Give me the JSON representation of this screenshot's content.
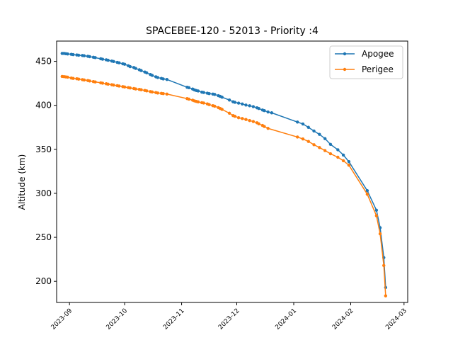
{
  "chart_data": {
    "type": "line",
    "title": "SPACEBEE-120 - 52013 - Priority :4",
    "xlabel": "",
    "ylabel": "Altitude (km)",
    "xlim": [
      "2023-08-25",
      "2024-03-03"
    ],
    "ylim": [
      176,
      473
    ],
    "x_ticks": [
      "2023-09",
      "2023-10",
      "2023-11",
      "2023-12",
      "2024-01",
      "2024-02",
      "2024-03"
    ],
    "y_ticks": [
      200,
      250,
      300,
      350,
      400,
      450
    ],
    "grid": false,
    "legend_position": "top-right",
    "series": [
      {
        "name": "Apogee",
        "color": "#1f77b4",
        "points": [
          [
            "2023-08-28",
            459
          ],
          [
            "2023-08-29",
            459
          ],
          [
            "2023-08-30",
            458.7
          ],
          [
            "2023-08-31",
            458.4
          ],
          [
            "2023-09-02",
            458
          ],
          [
            "2023-09-03",
            457.6
          ],
          [
            "2023-09-05",
            457.2
          ],
          [
            "2023-09-06",
            456.9
          ],
          [
            "2023-09-08",
            456.6
          ],
          [
            "2023-09-09",
            456.3
          ],
          [
            "2023-09-11",
            455.7
          ],
          [
            "2023-09-12",
            455.3
          ],
          [
            "2023-09-14",
            454.6
          ],
          [
            "2023-09-15",
            454.2
          ],
          [
            "2023-09-18",
            452.9
          ],
          [
            "2023-09-19",
            452.4
          ],
          [
            "2023-09-21",
            451.7
          ],
          [
            "2023-09-22",
            451.2
          ],
          [
            "2023-09-24",
            450.3
          ],
          [
            "2023-09-25",
            449.8
          ],
          [
            "2023-09-27",
            448.8
          ],
          [
            "2023-09-28",
            448.3
          ],
          [
            "2023-09-30",
            447.2
          ],
          [
            "2023-10-01",
            446.7
          ],
          [
            "2023-10-03",
            445
          ],
          [
            "2023-10-04",
            444
          ],
          [
            "2023-10-06",
            443
          ],
          [
            "2023-10-07",
            442
          ],
          [
            "2023-10-09",
            440.4
          ],
          [
            "2023-10-10",
            439.5
          ],
          [
            "2023-10-12",
            437.8
          ],
          [
            "2023-10-13",
            436.9
          ],
          [
            "2023-10-15",
            435
          ],
          [
            "2023-10-16",
            434
          ],
          [
            "2023-10-18",
            432.4
          ],
          [
            "2023-10-19",
            431.6
          ],
          [
            "2023-10-21",
            430.6
          ],
          [
            "2023-10-22",
            430
          ],
          [
            "2023-10-24",
            429.4
          ],
          [
            "2023-11-04",
            420.5
          ],
          [
            "2023-11-05",
            420
          ],
          [
            "2023-11-07",
            418.5
          ],
          [
            "2023-11-08",
            417.5
          ],
          [
            "2023-11-09",
            416.8
          ],
          [
            "2023-11-10",
            416.3
          ],
          [
            "2023-11-12",
            415
          ],
          [
            "2023-11-13",
            414.6
          ],
          [
            "2023-11-15",
            413.8
          ],
          [
            "2023-11-16",
            413.3
          ],
          [
            "2023-11-18",
            412.8
          ],
          [
            "2023-11-19",
            412.4
          ],
          [
            "2023-11-21",
            411
          ],
          [
            "2023-11-22",
            410.2
          ],
          [
            "2023-11-23",
            409.3
          ],
          [
            "2023-11-27",
            406
          ],
          [
            "2023-11-29",
            404
          ],
          [
            "2023-11-30",
            403.4
          ],
          [
            "2023-12-02",
            402.5
          ],
          [
            "2023-12-04",
            401.5
          ],
          [
            "2023-12-06",
            400.3
          ],
          [
            "2023-12-08",
            399.5
          ],
          [
            "2023-12-10",
            398.5
          ],
          [
            "2023-12-12",
            397.2
          ],
          [
            "2023-12-13",
            396.4
          ],
          [
            "2023-12-15",
            394.7
          ],
          [
            "2023-12-16",
            394
          ],
          [
            "2023-12-18",
            392.5
          ],
          [
            "2023-12-20",
            391.5
          ],
          [
            "2024-01-03",
            381
          ],
          [
            "2024-01-06",
            378.8
          ],
          [
            "2024-01-09",
            375
          ],
          [
            "2024-01-12",
            370.8
          ],
          [
            "2024-01-15",
            367
          ],
          [
            "2024-01-18",
            362.2
          ],
          [
            "2024-01-21",
            355.6
          ],
          [
            "2024-01-25",
            349.5
          ],
          [
            "2024-01-28",
            343.5
          ],
          [
            "2024-01-31",
            336
          ],
          [
            "2024-02-10",
            303
          ],
          [
            "2024-02-15",
            280.8
          ],
          [
            "2024-02-17",
            261
          ],
          [
            "2024-02-19",
            227
          ],
          [
            "2024-02-20",
            193
          ]
        ]
      },
      {
        "name": "Perigee",
        "color": "#ff7f0e",
        "points": [
          [
            "2023-08-28",
            432.8
          ],
          [
            "2023-08-29",
            432.6
          ],
          [
            "2023-08-30",
            432.3
          ],
          [
            "2023-08-31",
            432
          ],
          [
            "2023-09-02",
            431
          ],
          [
            "2023-09-03",
            430.6
          ],
          [
            "2023-09-05",
            430.2
          ],
          [
            "2023-09-06",
            429.8
          ],
          [
            "2023-09-08",
            429.2
          ],
          [
            "2023-09-09",
            428.8
          ],
          [
            "2023-09-11",
            428.2
          ],
          [
            "2023-09-12",
            427.7
          ],
          [
            "2023-09-14",
            427
          ],
          [
            "2023-09-15",
            426.6
          ],
          [
            "2023-09-18",
            425.6
          ],
          [
            "2023-09-19",
            425.2
          ],
          [
            "2023-09-21",
            424.5
          ],
          [
            "2023-09-22",
            424
          ],
          [
            "2023-09-24",
            423.4
          ],
          [
            "2023-09-25",
            423
          ],
          [
            "2023-09-27",
            422.3
          ],
          [
            "2023-09-28",
            421.9
          ],
          [
            "2023-09-30",
            421.2
          ],
          [
            "2023-10-01",
            420.8
          ],
          [
            "2023-10-03",
            420.1
          ],
          [
            "2023-10-04",
            419.7
          ],
          [
            "2023-10-06",
            419.1
          ],
          [
            "2023-10-07",
            418.6
          ],
          [
            "2023-10-09",
            418.1
          ],
          [
            "2023-10-10",
            417.7
          ],
          [
            "2023-10-12",
            416.9
          ],
          [
            "2023-10-13",
            416.4
          ],
          [
            "2023-10-15",
            415.6
          ],
          [
            "2023-10-16",
            415.2
          ],
          [
            "2023-10-18",
            414.5
          ],
          [
            "2023-10-19",
            414
          ],
          [
            "2023-10-21",
            413.6
          ],
          [
            "2023-10-22",
            413.3
          ],
          [
            "2023-10-24",
            412.8
          ],
          [
            "2023-11-04",
            407.6
          ],
          [
            "2023-11-05",
            407
          ],
          [
            "2023-11-07",
            405.8
          ],
          [
            "2023-11-08",
            405
          ],
          [
            "2023-11-09",
            404.4
          ],
          [
            "2023-11-10",
            403.9
          ],
          [
            "2023-11-12",
            403
          ],
          [
            "2023-11-13",
            402.6
          ],
          [
            "2023-11-15",
            401.6
          ],
          [
            "2023-11-16",
            400.8
          ],
          [
            "2023-11-18",
            399.6
          ],
          [
            "2023-11-19",
            399
          ],
          [
            "2023-11-21",
            397.4
          ],
          [
            "2023-11-22",
            396.4
          ],
          [
            "2023-11-23",
            395.4
          ],
          [
            "2023-11-27",
            391
          ],
          [
            "2023-11-29",
            388.3
          ],
          [
            "2023-11-30",
            387.5
          ],
          [
            "2023-12-02",
            385.9
          ],
          [
            "2023-12-04",
            385
          ],
          [
            "2023-12-06",
            383.9
          ],
          [
            "2023-12-08",
            382.7
          ],
          [
            "2023-12-10",
            381.6
          ],
          [
            "2023-12-12",
            380.2
          ],
          [
            "2023-12-13",
            379
          ],
          [
            "2023-12-15",
            377.2
          ],
          [
            "2023-12-16",
            376
          ],
          [
            "2023-12-18",
            373.8
          ],
          [
            "2024-01-03",
            364
          ],
          [
            "2024-01-06",
            361.8
          ],
          [
            "2024-01-09",
            359
          ],
          [
            "2024-01-12",
            355.2
          ],
          [
            "2024-01-15",
            352
          ],
          [
            "2024-01-18",
            348.6
          ],
          [
            "2024-01-21",
            345
          ],
          [
            "2024-01-25",
            341
          ],
          [
            "2024-01-28",
            337
          ],
          [
            "2024-01-31",
            332
          ],
          [
            "2024-02-10",
            299
          ],
          [
            "2024-02-15",
            274.5
          ],
          [
            "2024-02-17",
            254
          ],
          [
            "2024-02-19",
            218
          ],
          [
            "2024-02-20",
            183.5
          ]
        ]
      }
    ]
  }
}
